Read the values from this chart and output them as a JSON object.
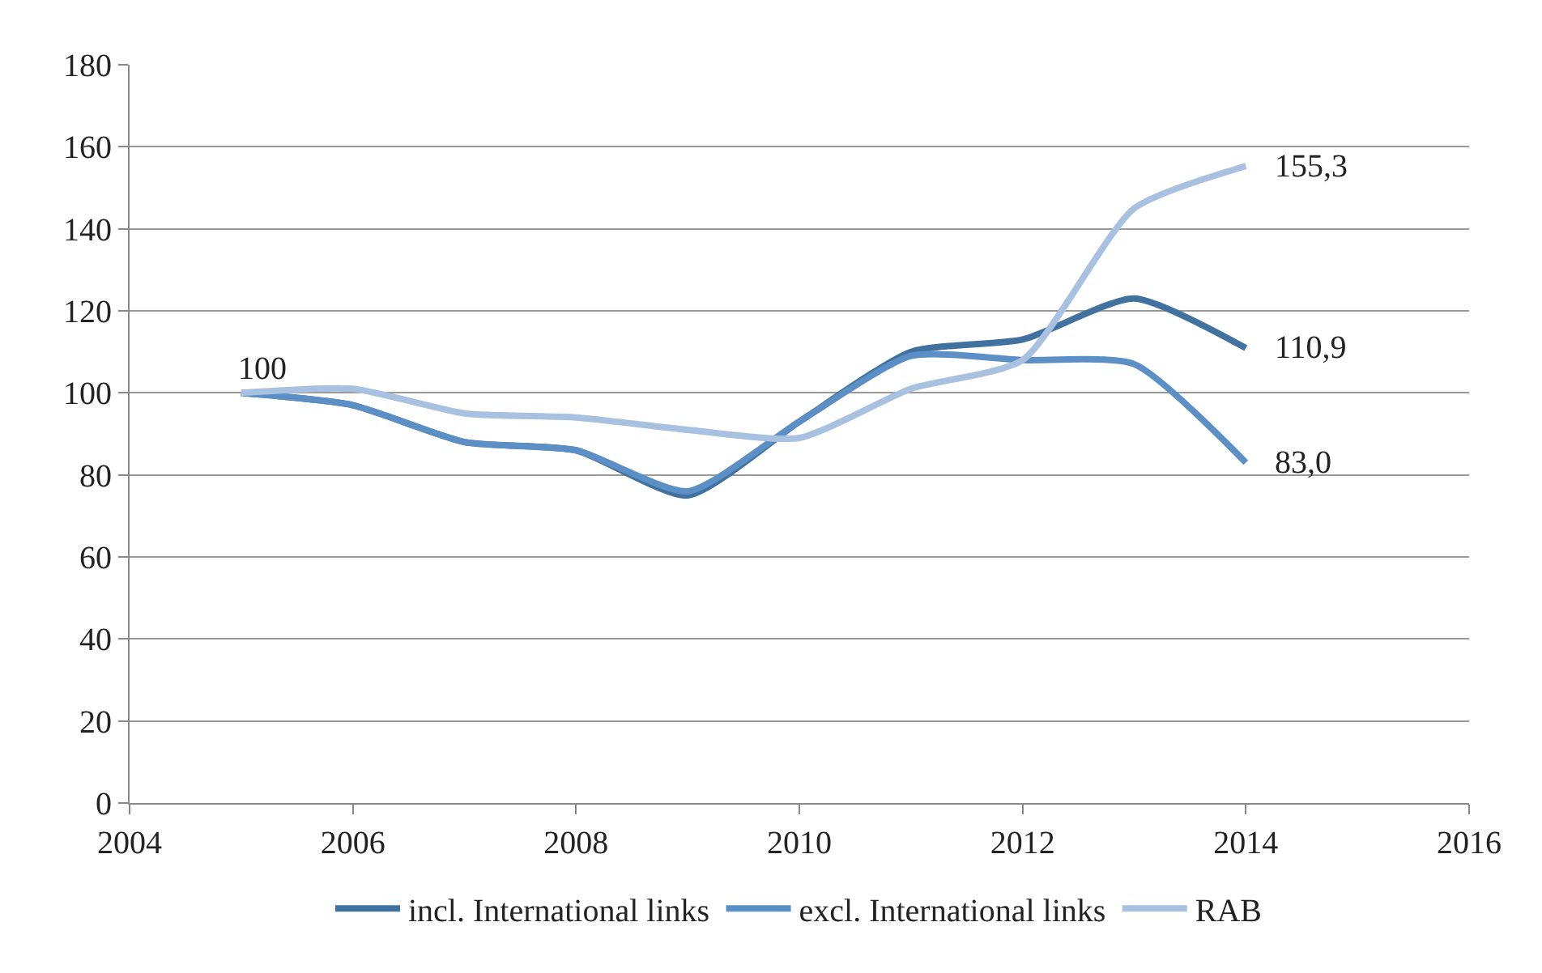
{
  "chart_data": {
    "type": "line",
    "x": [
      2005,
      2006,
      2007,
      2008,
      2009,
      2010,
      2011,
      2012,
      2013,
      2014
    ],
    "series": [
      {
        "name": "incl. International links",
        "color": "#41729f",
        "values": [
          100,
          97,
          88,
          86,
          75,
          93,
          110,
          113,
          123,
          110.9
        ],
        "value_labels": [
          null,
          null,
          null,
          null,
          null,
          null,
          null,
          null,
          null,
          "110,9"
        ]
      },
      {
        "name": "excl. International links",
        "color": "#5b8fc6",
        "values": [
          100,
          97,
          88,
          86,
          76,
          93,
          109,
          108,
          107,
          83.0
        ],
        "value_labels": [
          null,
          null,
          null,
          null,
          null,
          null,
          null,
          null,
          null,
          "83,0"
        ]
      },
      {
        "name": "RAB",
        "color": "#a9c1e0",
        "values": [
          100,
          101,
          95,
          94,
          91,
          89,
          101,
          108,
          145,
          155.3
        ],
        "value_labels": [
          "100",
          null,
          null,
          null,
          null,
          null,
          null,
          null,
          null,
          "155,3"
        ]
      }
    ],
    "xlim": [
      2004,
      2016
    ],
    "xticks": [
      2004,
      2006,
      2008,
      2010,
      2012,
      2014,
      2016
    ],
    "ylim": [
      0,
      180
    ],
    "yticks": [
      0,
      20,
      40,
      60,
      80,
      100,
      120,
      140,
      160,
      180
    ],
    "grid": "y",
    "legend": "bottom",
    "marker": "none",
    "line_style": "solid"
  }
}
